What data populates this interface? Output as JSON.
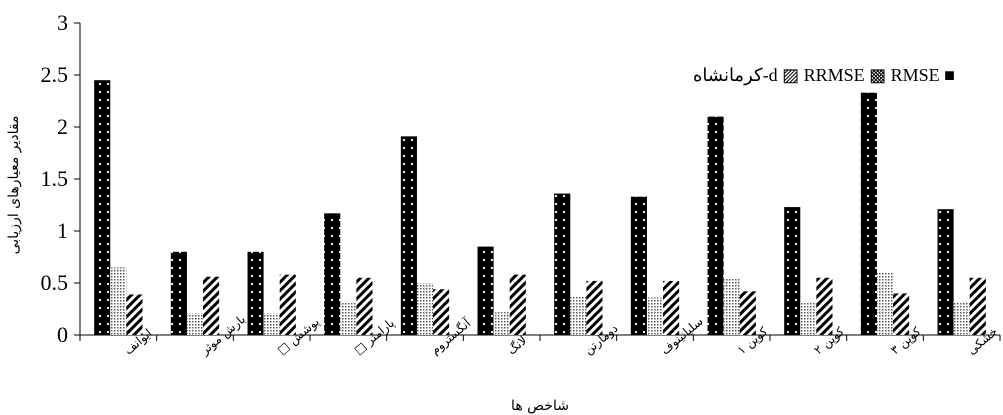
{
  "chart_data": {
    "type": "bar",
    "title": "",
    "xlabel": "شاخص ها",
    "ylabel": "مقادیر معیارهای ارزیابی",
    "ylim": [
      0,
      3
    ],
    "yticks": [
      "0",
      "0.5",
      "1",
      "1.5",
      "2",
      "2.5",
      "3"
    ],
    "grid": false,
    "legend_position": "top-right",
    "categories": [
      "ایوانف",
      "بارش موثر",
      "پوشش □",
      "پارامتر □",
      "آنگستروم",
      "لانگ",
      "دومارتن",
      "سلیانینوف",
      "کوپن ۱",
      "کوپن ۲",
      "کوپن ۳",
      "خشکی"
    ],
    "series": [
      {
        "name": "RMSE",
        "pattern": "black-dots",
        "values": [
          2.45,
          0.8,
          0.8,
          1.17,
          1.91,
          0.85,
          1.36,
          1.33,
          2.1,
          1.23,
          2.33,
          1.21
        ]
      },
      {
        "name": "RRMSE",
        "pattern": "dotted-gray",
        "values": [
          0.65,
          0.21,
          0.21,
          0.31,
          0.5,
          0.22,
          0.37,
          0.36,
          0.55,
          0.32,
          0.61,
          0.32
        ]
      },
      {
        "name": "d-کرمانشاه",
        "pattern": "black-diagonal",
        "values": [
          0.39,
          0.56,
          0.58,
          0.55,
          0.44,
          0.58,
          0.52,
          0.52,
          0.42,
          0.55,
          0.4,
          0.55
        ]
      }
    ],
    "legend_label": "کرمانشاه-d ▨ RRMSE ▩ RMSE ■"
  }
}
